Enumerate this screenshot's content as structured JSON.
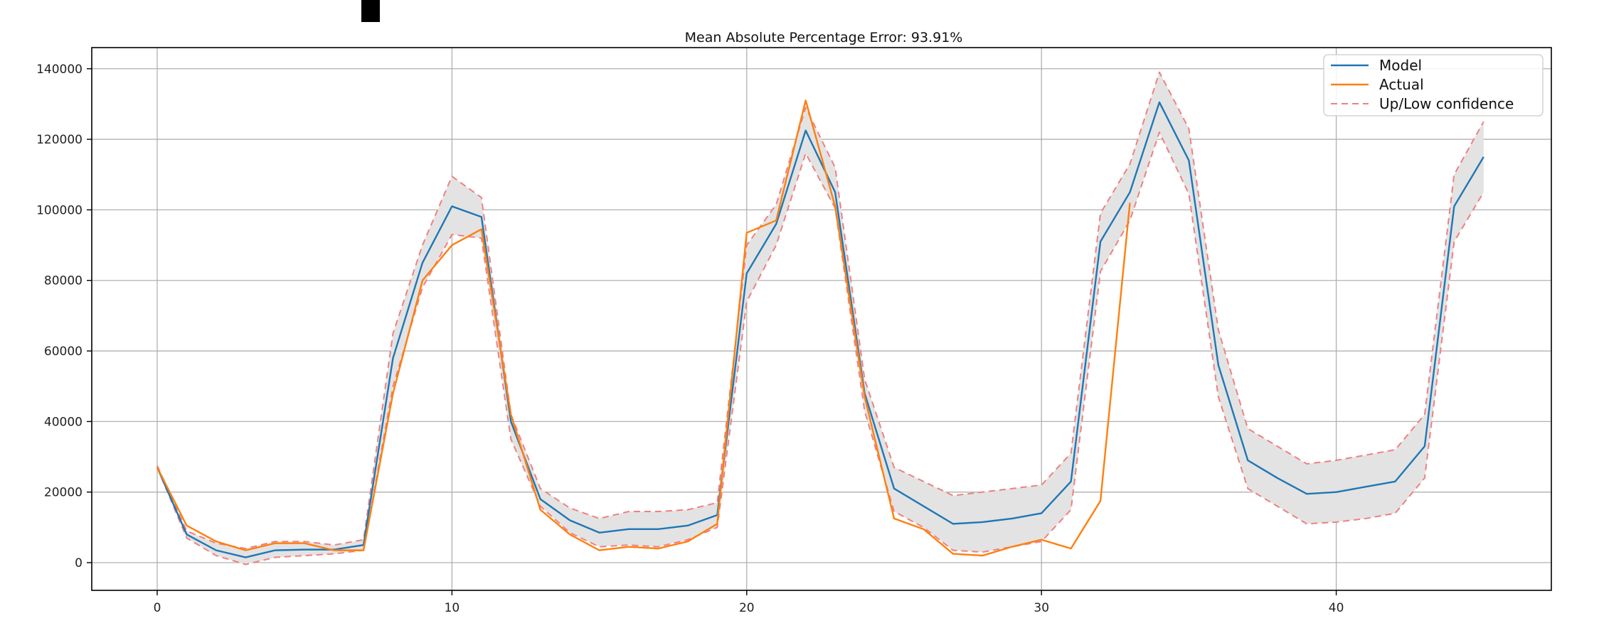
{
  "chart_data": {
    "type": "line",
    "title": "Mean Absolute Percentage Error: 93.91%",
    "xlabel": "",
    "ylabel": "",
    "xlim": [
      -2.25,
      47.25
    ],
    "ylim": [
      -8000,
      146000
    ],
    "xticks": [
      0,
      10,
      20,
      30,
      40
    ],
    "yticks": [
      0,
      20000,
      40000,
      60000,
      80000,
      100000,
      120000,
      140000
    ],
    "grid": true,
    "legend_position": "top-right",
    "x": [
      0,
      1,
      2,
      3,
      4,
      5,
      6,
      7,
      8,
      9,
      10,
      11,
      12,
      13,
      14,
      15,
      16,
      17,
      18,
      19,
      20,
      21,
      22,
      23,
      24,
      25,
      26,
      27,
      28,
      29,
      30,
      31,
      32,
      33,
      34,
      35,
      36,
      37,
      38,
      39,
      40,
      41,
      42,
      43,
      44,
      45
    ],
    "series": [
      {
        "name": "Model",
        "color": "#1f77b4",
        "style": "solid",
        "values": [
          27000,
          8000,
          3500,
          1500,
          3500,
          3700,
          3700,
          5000,
          58000,
          85000,
          101000,
          98000,
          40000,
          18000,
          12000,
          8500,
          9500,
          9500,
          10500,
          13500,
          82000,
          96000,
          122500,
          105000,
          48000,
          21000,
          16000,
          11000,
          11500,
          12500,
          14000,
          23000,
          91000,
          105000,
          130500,
          114000,
          56000,
          29000,
          24000,
          19500,
          20000,
          21500,
          23000,
          33000,
          101000,
          115000
        ]
      },
      {
        "name": "Actual",
        "color": "#ff7f0e",
        "style": "solid",
        "values": [
          27000,
          10500,
          6000,
          3500,
          5500,
          5500,
          3500,
          3500,
          48000,
          80000,
          90000,
          94500,
          42000,
          15000,
          8000,
          3500,
          4500,
          4000,
          6000,
          11000,
          93500,
          97000,
          131000,
          101000,
          47000,
          12500,
          9500,
          2500,
          2000,
          4500,
          6500,
          4000,
          17500,
          102000,
          null,
          null,
          null,
          null,
          null,
          null,
          null,
          null,
          null,
          null,
          null,
          null
        ]
      },
      {
        "name": "Up/Low confidence",
        "color": "#f08080",
        "style": "dashed",
        "upper": [
          27500,
          9000,
          5500,
          4000,
          6000,
          6000,
          5000,
          6500,
          65000,
          90000,
          109500,
          103500,
          42000,
          21000,
          15500,
          12500,
          14500,
          14500,
          15000,
          17000,
          90000,
          101500,
          129000,
          112000,
          52000,
          27000,
          23000,
          19000,
          20000,
          21000,
          22000,
          31000,
          99000,
          113000,
          139000,
          123000,
          66000,
          38000,
          33000,
          28000,
          29000,
          30500,
          32000,
          42000,
          110000,
          125000
        ],
        "lower": [
          27000,
          7000,
          2000,
          -500,
          1500,
          2000,
          2500,
          3500,
          50000,
          78000,
          93000,
          92000,
          35000,
          16000,
          8500,
          4500,
          5000,
          4500,
          6500,
          10000,
          74000,
          90000,
          116000,
          100500,
          43000,
          14500,
          10000,
          3500,
          3000,
          4500,
          6000,
          15000,
          82500,
          97000,
          122000,
          104500,
          47000,
          21000,
          16000,
          11000,
          11500,
          12500,
          14000,
          24000,
          91000,
          105000
        ]
      }
    ],
    "legend": [
      "Model",
      "Actual",
      "Up/Low confidence"
    ],
    "band_color": "#e3e3e3"
  }
}
